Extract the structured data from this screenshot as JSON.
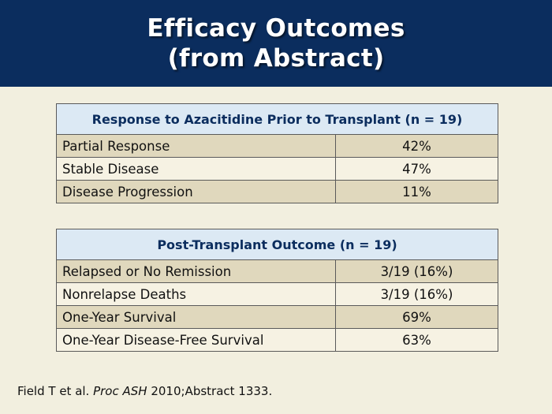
{
  "header": {
    "title_line1": "Efficacy Outcomes",
    "title_line2": "(from Abstract)"
  },
  "table1": {
    "heading": "Response to Azacitidine Prior to Transplant (n = 19)",
    "rows": [
      {
        "label": "Partial Response",
        "value": "42%"
      },
      {
        "label": "Stable Disease",
        "value": "47%"
      },
      {
        "label": "Disease Progression",
        "value": "11%"
      }
    ]
  },
  "table2": {
    "heading": "Post-Transplant Outcome (n = 19)",
    "rows": [
      {
        "label": "Relapsed or No Remission",
        "value": "3/19 (16%)"
      },
      {
        "label": "Nonrelapse Deaths",
        "value": "3/19 (16%)"
      },
      {
        "label": "One-Year Survival",
        "value": "69%"
      },
      {
        "label": "One-Year Disease-Free Survival",
        "value": "63%"
      }
    ]
  },
  "citation": {
    "authors": "Field T et al. ",
    "journal": "Proc ASH",
    "details": " 2010;Abstract 1333."
  },
  "colors": {
    "header_bg": "#0b2d5e",
    "slide_bg": "#f2efdf",
    "table_heading_bg": "#dce9f4",
    "row_shade": "#e0d8bd",
    "row_plain": "#f6f2e3"
  }
}
